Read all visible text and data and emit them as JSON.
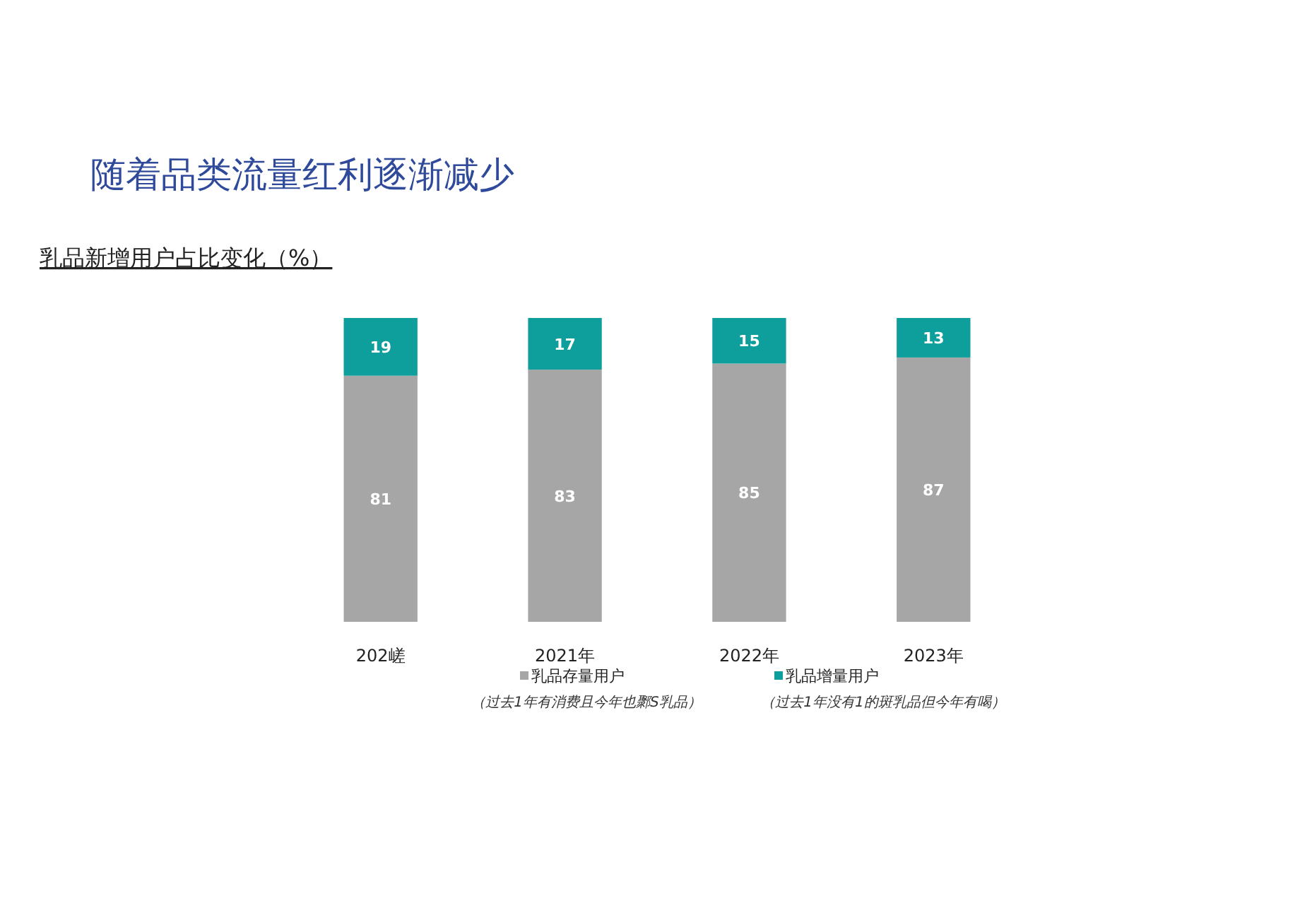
{
  "chart_data": {
    "type": "bar",
    "title": "随着品类流量红利逐渐减少",
    "subtitle": "乳品新增用户占比变化（%）",
    "categories": [
      "202嵯",
      "2021年",
      "2022年",
      "2023年"
    ],
    "stacked": true,
    "data_labels": true,
    "legend": "bottom",
    "series": [
      {
        "name": "乳品存量用户",
        "color": "#a6a6a6",
        "values": [
          81,
          83,
          85,
          87
        ]
      },
      {
        "name": "乳品增量用户",
        "color": "#0e9e9b",
        "values": [
          19,
          17,
          15,
          13
        ]
      }
    ],
    "annotations": [
      "（过去1年有消费且今年也鄹S乳品）",
      "（过去1年没有1的斑乳品但今年有喝）"
    ]
  }
}
